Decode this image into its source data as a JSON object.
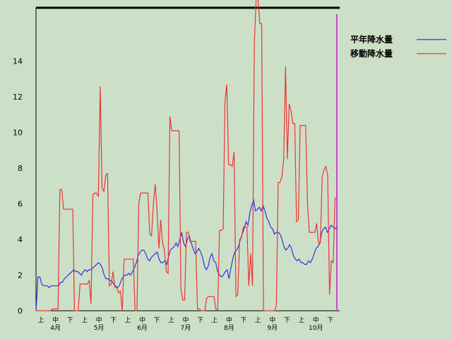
{
  "chart_data": {
    "type": "line",
    "title": "",
    "xlabel": "",
    "ylabel": "",
    "ylim": [
      0,
      17
    ],
    "yticks": [
      0,
      2,
      4,
      6,
      8,
      10,
      12,
      14
    ],
    "grid": false,
    "legend": "right",
    "period_labels": [
      "上",
      "中",
      "下",
      "上",
      "中",
      "下",
      "上",
      "中",
      "下",
      "上",
      "中",
      "下",
      "上",
      "中",
      "下",
      "上",
      "中",
      "下",
      "上",
      "中",
      "下"
    ],
    "month_labels": [
      "4月",
      "5月",
      "6月",
      "7月",
      "8月",
      "9月",
      "10月"
    ],
    "series": [
      {
        "name": "平年降水量",
        "color": "#3333dd",
        "values": [
          0,
          1.9,
          1.9,
          1.5,
          1.4,
          1.4,
          1.4,
          1.3,
          1.4,
          1.4,
          1.4,
          1.4,
          1.4,
          1.6,
          1.6,
          1.8,
          1.9,
          2.0,
          2.1,
          2.2,
          2.3,
          2.2,
          2.2,
          2.1,
          2.0,
          2.2,
          2.3,
          2.2,
          2.3,
          2.3,
          2.4,
          2.5,
          2.6,
          2.7,
          2.6,
          2.4,
          2.0,
          1.8,
          1.8,
          1.7,
          1.7,
          1.5,
          1.4,
          1.3,
          1.4,
          1.7,
          1.9,
          2.0,
          2.0,
          2.1,
          2.0,
          2.2,
          2.4,
          2.7,
          3.1,
          3.3,
          3.4,
          3.4,
          3.2,
          2.9,
          2.8,
          3.0,
          3.1,
          3.2,
          3.3,
          2.9,
          2.7,
          2.7,
          2.8,
          2.6,
          3.0,
          3.4,
          3.5,
          3.6,
          3.8,
          3.6,
          4.0,
          4.4,
          3.8,
          3.6,
          4.0,
          4.2,
          3.8,
          3.5,
          3.2,
          3.3,
          3.5,
          3.3,
          3.0,
          2.5,
          2.3,
          2.5,
          3.0,
          3.2,
          2.8,
          2.7,
          2.2,
          2.0,
          1.9,
          2.0,
          2.2,
          2.3,
          1.8,
          2.4,
          2.9,
          3.3,
          3.4,
          3.6,
          4.0,
          4.3,
          4.6,
          5.0,
          4.8,
          5.5,
          5.9,
          6.2,
          5.6,
          5.7,
          5.8,
          5.6,
          5.9,
          5.6,
          5.2,
          5.0,
          4.7,
          4.6,
          4.3,
          4.4,
          4.4,
          4.3,
          4.0,
          3.6,
          3.4,
          3.5,
          3.7,
          3.5,
          3.1,
          2.9,
          2.8,
          2.9,
          2.7,
          2.7,
          2.6,
          2.6,
          2.8,
          2.7,
          2.9,
          3.2,
          3.5,
          3.6,
          3.8,
          4.4,
          4.6,
          4.7,
          4.4,
          4.6,
          4.8,
          4.7,
          4.6,
          4.7
        ]
      },
      {
        "name": "移動降水量",
        "color": "#ee3333",
        "values": [
          0,
          0,
          0,
          0,
          0,
          0,
          0,
          0,
          0,
          0.1,
          0.1,
          0.1,
          0.1,
          6.8,
          6.8,
          5.7,
          5.7,
          5.7,
          5.7,
          5.7,
          5.7,
          0,
          0,
          0,
          1.5,
          1.5,
          1.5,
          1.5,
          1.5,
          1.7,
          0.4,
          6.5,
          6.6,
          6.6,
          6.4,
          12.6,
          6.9,
          6.7,
          7.6,
          7.7,
          1.4,
          1.5,
          2.2,
          1.3,
          1.3,
          1.0,
          1.1,
          0,
          2.9,
          2.9,
          2.9,
          2.9,
          2.9,
          2.9,
          0,
          0,
          6.0,
          6.6,
          6.6,
          6.6,
          6.6,
          6.6,
          4.3,
          4.2,
          6.0,
          7.1,
          5.6,
          3.5,
          5.1,
          3.8,
          3.4,
          2.2,
          2.1,
          10.9,
          10.1,
          10.1,
          10.1,
          10.1,
          10.1,
          1.2,
          0.6,
          0.6,
          4.4,
          4.4,
          3.9,
          3.9,
          3.9,
          3.9,
          0.1,
          0.1,
          0,
          0,
          0,
          0.7,
          0.8,
          0.8,
          0.8,
          0.8,
          0.1,
          0,
          4.5,
          4.5,
          4.6,
          11.7,
          12.7,
          8.2,
          8.2,
          8.1,
          8.9,
          0.8,
          0.9,
          4.0,
          4.1,
          4.7,
          4.7,
          4.7,
          1.4,
          3.2,
          1.4,
          15.0,
          17.5,
          17.5,
          16.1,
          16.1,
          0,
          0,
          0,
          0,
          0,
          0,
          0,
          0.3,
          7.2,
          7.2,
          7.5,
          8.5,
          13.7,
          8.5,
          11.6,
          11.2,
          10.5,
          10.5,
          5.0,
          5.1,
          10.4,
          10.4,
          10.4,
          10.4,
          6.0,
          4.4,
          4.4,
          4.4,
          4.4,
          4.9,
          3.8,
          3.8,
          7.5,
          7.9,
          8.1,
          7.6,
          0.9,
          2.8,
          2.7,
          6.3,
          6.3
        ]
      }
    ]
  }
}
